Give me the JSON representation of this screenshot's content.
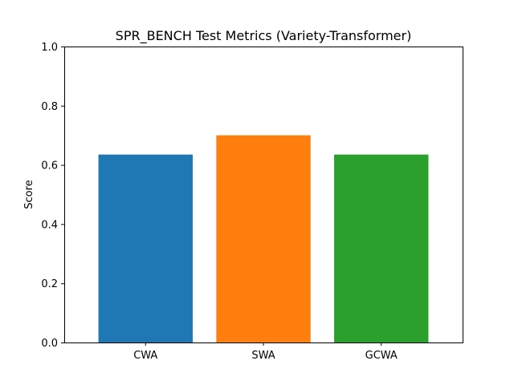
{
  "chart_data": {
    "type": "bar",
    "title": "SPR_BENCH Test Metrics (Variety-Transformer)",
    "xlabel": "",
    "ylabel": "Score",
    "categories": [
      "CWA",
      "SWA",
      "GCWA"
    ],
    "values": [
      0.635,
      0.7,
      0.635
    ],
    "colors": [
      "#1f77b4",
      "#ff7f0e",
      "#2ca02c"
    ],
    "ylim": [
      0,
      1.0
    ],
    "yticks": [
      "0.0",
      "0.2",
      "0.4",
      "0.6",
      "0.8",
      "1.0"
    ],
    "grid": false,
    "legend": "none"
  }
}
